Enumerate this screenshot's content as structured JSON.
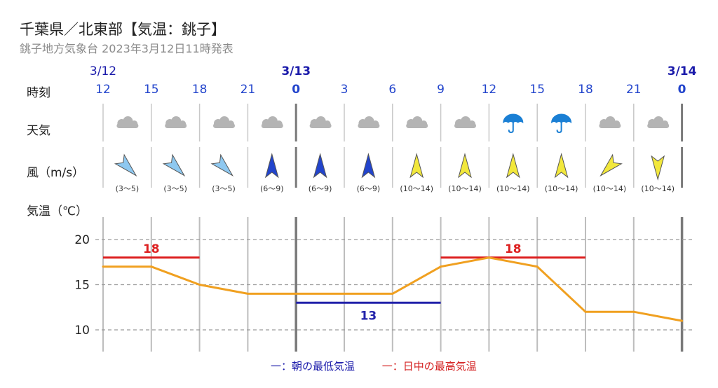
{
  "title": "千葉県／北東部【気温：銚子】",
  "subtitle": "銚子地方気象台 2023年3月12日11時発表",
  "labels": {
    "time": "時刻",
    "weather": "天気",
    "wind": "風（m/s）",
    "temp": "気温（℃）"
  },
  "dates": [
    {
      "label": "3/12",
      "index": 0
    },
    {
      "label": "3/13",
      "index": 4
    },
    {
      "label": "3/14",
      "index": 12
    }
  ],
  "hours": [
    "12",
    "15",
    "18",
    "21",
    "0",
    "3",
    "6",
    "9",
    "12",
    "15",
    "18",
    "21",
    "0"
  ],
  "bold_hours": [
    4,
    12
  ],
  "weather": [
    "cloudy-icon",
    "cloudy-icon",
    "cloudy-icon",
    "cloudy-icon",
    "cloudy-icon",
    "cloudy-icon",
    "cloudy-icon",
    "cloudy-icon",
    "umbrella-icon",
    "umbrella-icon",
    "cloudy-icon",
    "cloudy-icon"
  ],
  "wind": [
    {
      "range": "(3〜5)",
      "direction": "NW",
      "color": "#8ec8f0"
    },
    {
      "range": "(3〜5)",
      "direction": "NW",
      "color": "#8ec8f0"
    },
    {
      "range": "(3〜5)",
      "direction": "NW",
      "color": "#8ec8f0"
    },
    {
      "range": "(6〜9)",
      "direction": "S",
      "color": "#2244cc"
    },
    {
      "range": "(6〜9)",
      "direction": "S",
      "color": "#2244cc"
    },
    {
      "range": "(6〜9)",
      "direction": "S",
      "color": "#2244cc"
    },
    {
      "range": "(10〜14)",
      "direction": "S",
      "color": "#f2e83c"
    },
    {
      "range": "(10〜14)",
      "direction": "S",
      "color": "#f2e83c"
    },
    {
      "range": "(10〜14)",
      "direction": "S",
      "color": "#f2e83c"
    },
    {
      "range": "(10〜14)",
      "direction": "S",
      "color": "#f2e83c"
    },
    {
      "range": "(10〜14)",
      "direction": "NE",
      "color": "#f2e83c"
    },
    {
      "range": "(10〜14)",
      "direction": "N",
      "color": "#f2e83c"
    }
  ],
  "colors": {
    "temp_line": "#f0a020",
    "max_temp": "#dd2020",
    "min_temp": "#2222aa",
    "date_text": "#1a1aaa",
    "hour_text": "#2244cc",
    "weather_icon": "#1a7fd4",
    "cloud_icon": "#b4b4b4"
  },
  "legend": {
    "min": "一：朝の最低気温",
    "max": "一：日中の最高気温"
  },
  "chart_data": {
    "type": "line",
    "x": [
      "12",
      "15",
      "18",
      "21",
      "0",
      "3",
      "6",
      "9",
      "12",
      "15",
      "18",
      "21",
      "0"
    ],
    "series": [
      {
        "values": [
          17,
          17,
          15,
          14,
          14,
          14,
          14,
          17,
          18,
          17,
          12,
          12,
          11
        ]
      }
    ],
    "max_temp_bars": [
      {
        "from": 0,
        "to": 2,
        "value": 18,
        "label": "18"
      },
      {
        "from": 7,
        "to": 10,
        "value": 18,
        "label": "18"
      }
    ],
    "min_temp_bars": [
      {
        "from": 4,
        "to": 7,
        "value": 13,
        "label": "13"
      }
    ],
    "yticks": [
      10,
      15,
      20
    ],
    "ylim": [
      7,
      22
    ],
    "grid": true
  }
}
